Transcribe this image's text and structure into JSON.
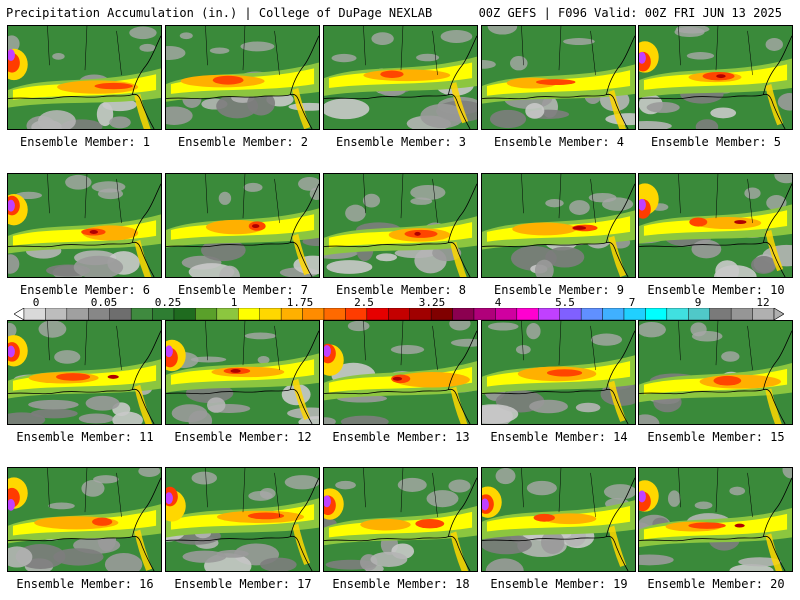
{
  "header": {
    "left_title": "Precipitation Accumulation (in.) | College of DuPage NEXLAB",
    "right_title": "00Z GEFS | F096 Valid: 00Z FRI JUN 13 2025"
  },
  "colorbar": {
    "tick_labels": [
      "0",
      "0.05",
      "0.25",
      "1",
      "1.75",
      "2.5",
      "3.25",
      "4",
      "5.5",
      "7",
      "9",
      "12"
    ],
    "colors": [
      "#d9d9d9",
      "#bdbdbd",
      "#a0a0a0",
      "#878787",
      "#6e6e6e",
      "#3f8a3f",
      "#2e7d32",
      "#1f6b1f",
      "#5aa02a",
      "#8cc63f",
      "#ffff00",
      "#ffd700",
      "#ffb000",
      "#ff8c00",
      "#ff6a00",
      "#ff3c00",
      "#e60000",
      "#c40000",
      "#a00000",
      "#800000",
      "#8b0050",
      "#b0007a",
      "#d000a0",
      "#ff00d0",
      "#c040ff",
      "#8060ff",
      "#6090ff",
      "#40b0ff",
      "#20d0ff",
      "#00ffff",
      "#40e0e0",
      "#50c8c8",
      "#7a7a7a",
      "#969696",
      "#b0b0b0"
    ]
  },
  "panels": [
    {
      "label": "Ensemble Member: 1"
    },
    {
      "label": "Ensemble Member: 2"
    },
    {
      "label": "Ensemble Member: 3"
    },
    {
      "label": "Ensemble Member: 4"
    },
    {
      "label": "Ensemble Member: 5"
    },
    {
      "label": "Ensemble Member: 6"
    },
    {
      "label": "Ensemble Member: 7"
    },
    {
      "label": "Ensemble Member: 8"
    },
    {
      "label": "Ensemble Member: 9"
    },
    {
      "label": "Ensemble Member: 10"
    },
    {
      "label": "Ensemble Member: 11"
    },
    {
      "label": "Ensemble Member: 12"
    },
    {
      "label": "Ensemble Member: 13"
    },
    {
      "label": "Ensemble Member: 14"
    },
    {
      "label": "Ensemble Member: 15"
    },
    {
      "label": "Ensemble Member: 16"
    },
    {
      "label": "Ensemble Member: 17"
    },
    {
      "label": "Ensemble Member: 18"
    },
    {
      "label": "Ensemble Member: 19"
    },
    {
      "label": "Ensemble Member: 20"
    }
  ]
}
